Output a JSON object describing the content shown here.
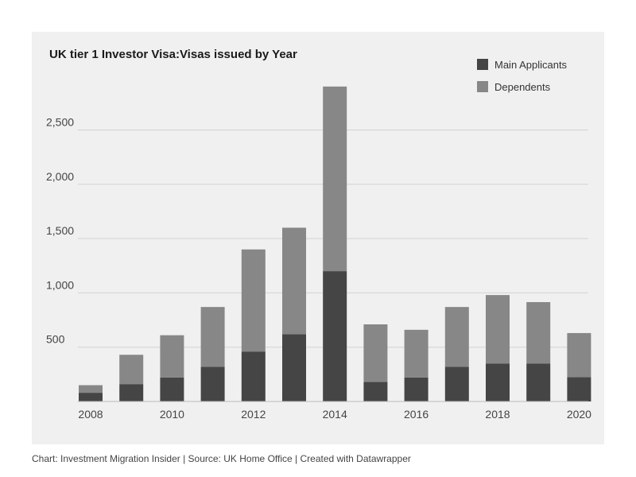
{
  "chart_data": {
    "type": "bar",
    "stacked": true,
    "title": "UK tier 1 Investor Visa:Visas issued by Year",
    "xlabel": "",
    "ylabel": "",
    "categories": [
      "2008",
      "2009",
      "2010",
      "2011",
      "2012",
      "2013",
      "2014",
      "2015",
      "2016",
      "2017",
      "2018",
      "2019",
      "2020"
    ],
    "x_tick_labels": [
      "2008",
      "",
      "2010",
      "",
      "2012",
      "",
      "2014",
      "",
      "2016",
      "",
      "2018",
      "",
      "2020"
    ],
    "series": [
      {
        "name": "Main Applicants",
        "color": "#454545",
        "values": [
          80,
          160,
          220,
          320,
          460,
          620,
          1200,
          180,
          220,
          320,
          350,
          350,
          225
        ]
      },
      {
        "name": "Dependents",
        "color": "#878787",
        "values": [
          70,
          270,
          390,
          550,
          940,
          980,
          1700,
          530,
          440,
          550,
          630,
          565,
          405
        ]
      }
    ],
    "y_ticks": [
      500,
      1000,
      1500,
      2000,
      2500
    ],
    "y_tick_labels": [
      "500",
      "1,000",
      "1,500",
      "2,000",
      "2,500"
    ],
    "ylim": [
      0,
      2950
    ],
    "grid": true,
    "legend_position": "top-right"
  },
  "footer": {
    "text": "Chart: Investment Migration Insider | Source: UK Home Office | Created with Datawrapper"
  }
}
